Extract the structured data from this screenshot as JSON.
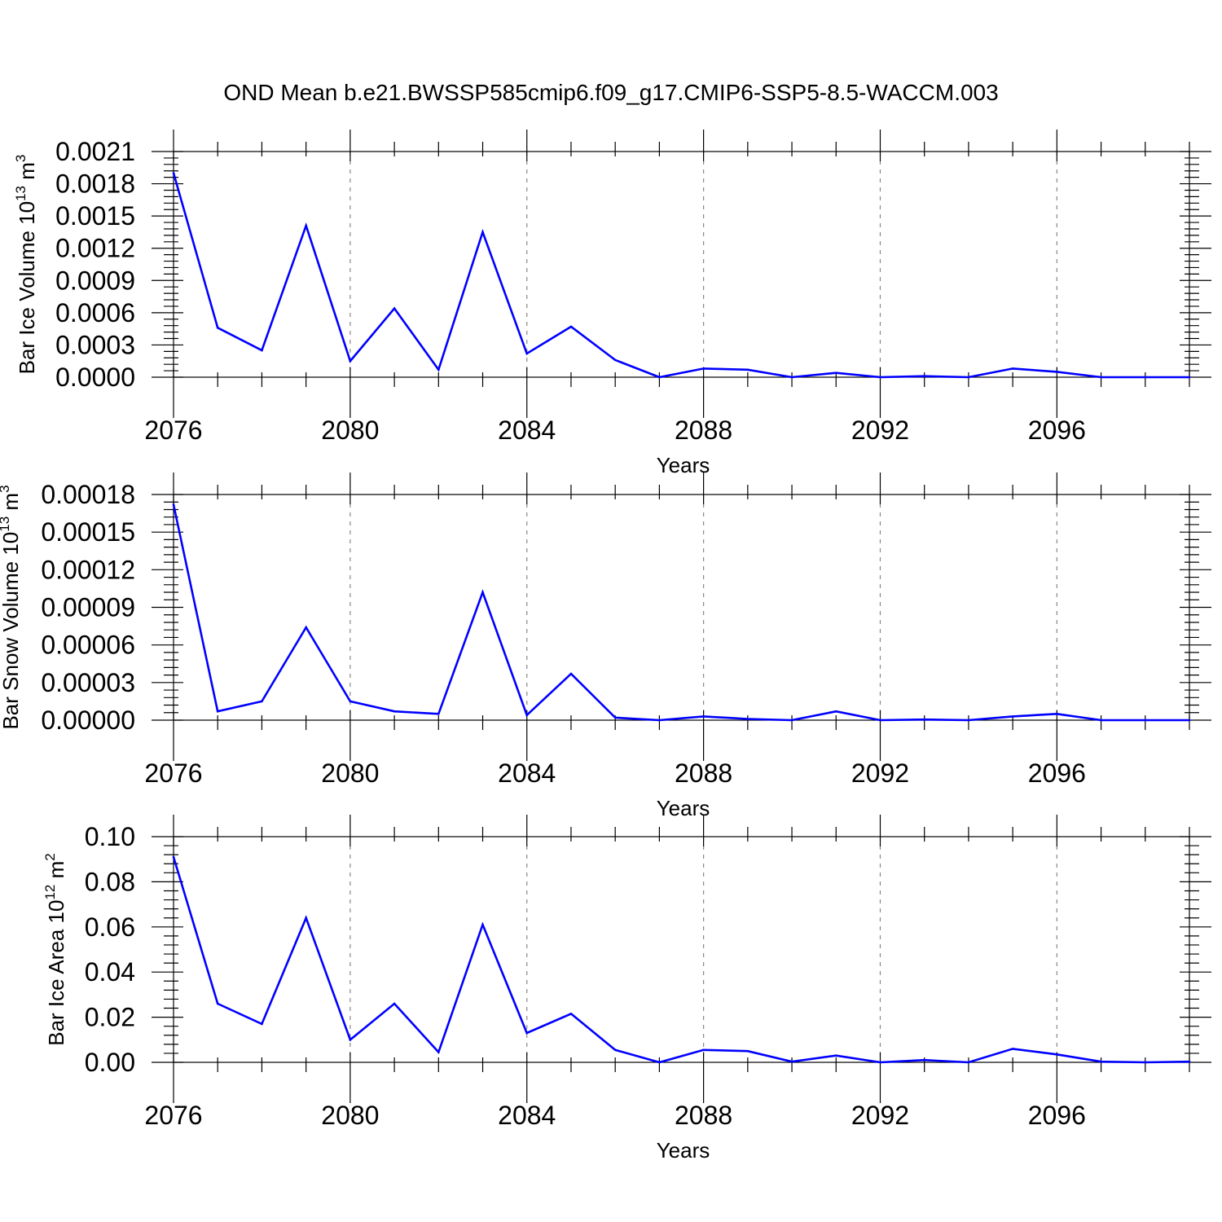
{
  "title": "OND Mean b.e21.BWSSP585cmip6.f09_g17.CMIP6-SSP5-8.5-WACCM.003",
  "colors": {
    "series": "#0000ff",
    "axis": "#000000",
    "grid": "#888888",
    "background": "#ffffff"
  },
  "chart_data": [
    {
      "type": "line",
      "title": "OND Mean b.e21.BWSSP585cmip6.f09_g17.CMIP6-SSP5-8.5-WACCM.003",
      "xlabel": "Years",
      "ylabel": {
        "main": "Bar Ice Volume 10",
        "exp": "13",
        "unit": " m",
        "unit_exp": "3"
      },
      "xlim": [
        2076,
        2099
      ],
      "ylim": [
        0,
        0.0021
      ],
      "xticks": [
        2076,
        2080,
        2084,
        2088,
        2092,
        2096
      ],
      "xtick_labels": [
        "2076",
        "2080",
        "2084",
        "2088",
        "2092",
        "2096"
      ],
      "yticks": [
        0,
        0.0003,
        0.0006,
        0.0009,
        0.0012,
        0.0015,
        0.0018,
        0.0021
      ],
      "ytick_labels": [
        "0.0000",
        "0.0003",
        "0.0006",
        "0.0009",
        "0.0012",
        "0.0015",
        "0.0018",
        "0.0021"
      ],
      "grid": "vertical dashed at major x ticks",
      "x": [
        2076,
        2077,
        2078,
        2079,
        2080,
        2081,
        2082,
        2083,
        2084,
        2085,
        2086,
        2087,
        2088,
        2089,
        2090,
        2091,
        2092,
        2093,
        2094,
        2095,
        2096,
        2097,
        2098,
        2099
      ],
      "series": [
        {
          "name": "Bar Ice Volume",
          "values": [
            0.0019,
            0.00046,
            0.00025,
            0.00141,
            0.00015,
            0.00064,
            7e-05,
            0.00135,
            0.00022,
            0.00047,
            0.00016,
            0.0,
            8e-05,
            7e-05,
            0.0,
            4e-05,
            0.0,
            1e-05,
            0.0,
            8e-05,
            5e-05,
            0.0,
            0.0,
            0.0
          ]
        }
      ]
    },
    {
      "type": "line",
      "xlabel": "Years",
      "ylabel": {
        "main": "Bar Snow Volume 10",
        "exp": "13",
        "unit": " m",
        "unit_exp": "3"
      },
      "xlim": [
        2076,
        2099
      ],
      "ylim": [
        0,
        0.00018
      ],
      "xticks": [
        2076,
        2080,
        2084,
        2088,
        2092,
        2096
      ],
      "xtick_labels": [
        "2076",
        "2080",
        "2084",
        "2088",
        "2092",
        "2096"
      ],
      "yticks": [
        0,
        3e-05,
        6e-05,
        9e-05,
        0.00012,
        0.00015,
        0.00018
      ],
      "ytick_labels": [
        "0.00000",
        "0.00003",
        "0.00006",
        "0.00009",
        "0.00012",
        "0.00015",
        "0.00018"
      ],
      "grid": "vertical dashed at major x ticks",
      "x": [
        2076,
        2077,
        2078,
        2079,
        2080,
        2081,
        2082,
        2083,
        2084,
        2085,
        2086,
        2087,
        2088,
        2089,
        2090,
        2091,
        2092,
        2093,
        2094,
        2095,
        2096,
        2097,
        2098,
        2099
      ],
      "series": [
        {
          "name": "Bar Snow Volume",
          "values": [
            0.000172,
            7e-06,
            1.5e-05,
            7.4e-05,
            1.5e-05,
            7e-06,
            5e-06,
            0.000102,
            4e-06,
            3.7e-05,
            2e-06,
            0.0,
            3e-06,
            1e-06,
            0.0,
            7e-06,
            0.0,
            5e-07,
            0.0,
            3e-06,
            5e-06,
            0.0,
            0.0,
            0.0
          ]
        }
      ]
    },
    {
      "type": "line",
      "xlabel": "Years",
      "ylabel": {
        "main": "Bar Ice Area 10",
        "exp": "12",
        "unit": " m",
        "unit_exp": "2"
      },
      "xlim": [
        2076,
        2099
      ],
      "ylim": [
        0,
        0.1
      ],
      "xticks": [
        2076,
        2080,
        2084,
        2088,
        2092,
        2096
      ],
      "xtick_labels": [
        "2076",
        "2080",
        "2084",
        "2088",
        "2092",
        "2096"
      ],
      "yticks": [
        0,
        0.02,
        0.04,
        0.06,
        0.08,
        0.1
      ],
      "ytick_labels": [
        "0.00",
        "0.02",
        "0.04",
        "0.06",
        "0.08",
        "0.10"
      ],
      "grid": "vertical dashed at major x ticks",
      "x": [
        2076,
        2077,
        2078,
        2079,
        2080,
        2081,
        2082,
        2083,
        2084,
        2085,
        2086,
        2087,
        2088,
        2089,
        2090,
        2091,
        2092,
        2093,
        2094,
        2095,
        2096,
        2097,
        2098,
        2099
      ],
      "series": [
        {
          "name": "Bar Ice Area",
          "values": [
            0.091,
            0.026,
            0.017,
            0.064,
            0.01,
            0.026,
            0.0045,
            0.061,
            0.013,
            0.0215,
            0.0055,
            0.0,
            0.0055,
            0.005,
            0.0003,
            0.003,
            0.0,
            0.001,
            0.0,
            0.006,
            0.0035,
            0.0003,
            0.0,
            0.0003
          ]
        }
      ]
    }
  ]
}
